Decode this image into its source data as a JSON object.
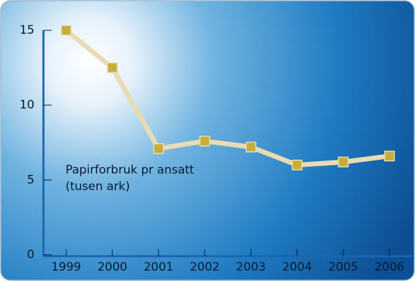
{
  "chart_data": {
    "type": "line",
    "categories": [
      "1999",
      "2000",
      "2001",
      "2002",
      "2003",
      "2004",
      "2005",
      "2006"
    ],
    "series": [
      {
        "name": "Papirforbruk pr ansatt",
        "color": "#c9ad3a",
        "values": [
          15,
          12.5,
          7.1,
          7.6,
          7.2,
          6.0,
          6.2,
          6.6
        ]
      }
    ],
    "annotation": [
      "Papirforbruk pr ansatt",
      "(tusen ark)"
    ],
    "ylim": [
      0,
      15
    ],
    "yticks": [
      0,
      5,
      10,
      15
    ],
    "grid": false
  }
}
